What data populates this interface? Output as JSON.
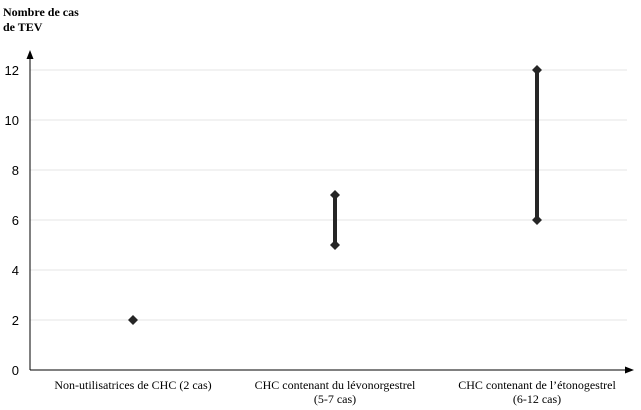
{
  "chart_data": {
    "type": "scatter",
    "ylabel_lines": [
      "Nombre de cas",
      "de TEV"
    ],
    "ylim": [
      0,
      12
    ],
    "yticks": [
      0,
      2,
      4,
      6,
      8,
      10,
      12
    ],
    "grid": true,
    "categories": [
      {
        "label_lines": [
          "Non-utilisatrices de CHC (2 cas)"
        ],
        "min": 2,
        "max": 2
      },
      {
        "label_lines": [
          "CHC contenant du lévonorgestrel",
          "(5-7 cas)"
        ],
        "min": 5,
        "max": 7
      },
      {
        "label_lines": [
          "CHC contenant de l’étonogestrel",
          "(6-12 cas)"
        ],
        "min": 6,
        "max": 12
      }
    ],
    "marker_color": "#262626",
    "grid_color": "#e6e6e6",
    "axis_color": "#000000"
  }
}
